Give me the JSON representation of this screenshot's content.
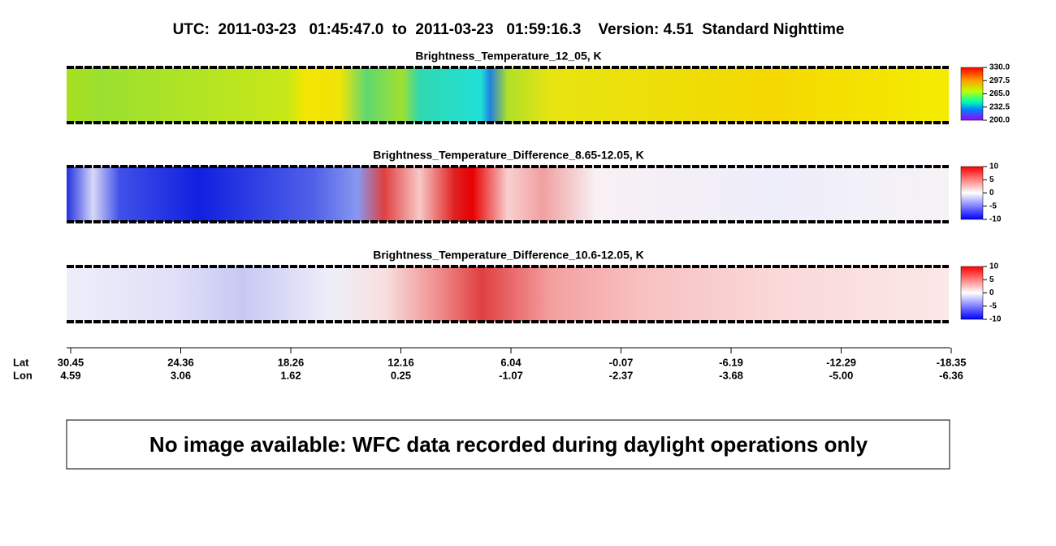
{
  "header": {
    "title": "UTC:  2011-03-23   01:45:47.0  to  2011-03-23   01:59:16.3    Version: 4.51  Standard Nighttime"
  },
  "panels": [
    {
      "title": "Brightness_Temperature_12_05, K",
      "colorbar": [
        "330.0",
        "297.5",
        "265.0",
        "232.5",
        "200.0"
      ]
    },
    {
      "title": "Brightness_Temperature_Difference_8.65-12.05, K",
      "colorbar": [
        "10",
        "5",
        "0",
        "-5",
        "-10"
      ]
    },
    {
      "title": "Brightness_Temperature_Difference_10.6-12.05, K",
      "colorbar": [
        "10",
        "5",
        "0",
        "-5",
        "-10"
      ]
    }
  ],
  "axis": {
    "row_labels": [
      "Lat",
      "Lon"
    ],
    "lat": [
      "30.45",
      "24.36",
      "18.26",
      "12.16",
      "6.04",
      "-0.07",
      "-6.19",
      "-12.29",
      "-18.35"
    ],
    "lon": [
      "4.59",
      "3.06",
      "1.62",
      "0.25",
      "-1.07",
      "-2.37",
      "-3.68",
      "-5.00",
      "-6.36"
    ]
  },
  "notice": "No image available: WFC data recorded during daylight operations only"
}
